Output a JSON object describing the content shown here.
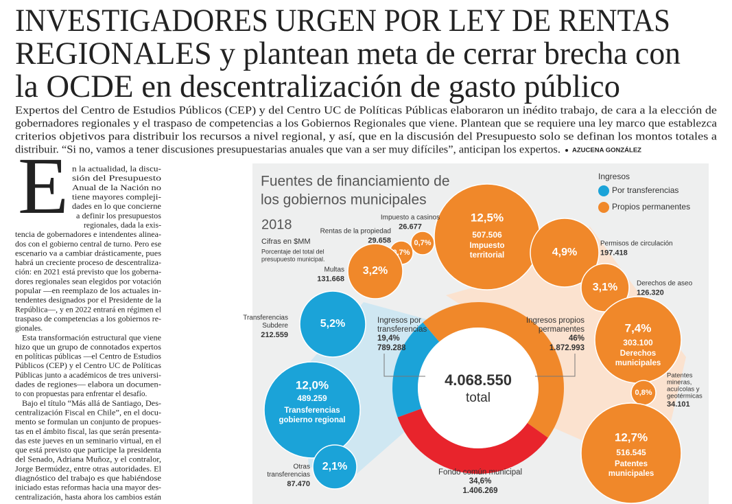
{
  "header": {
    "title": [
      "INVESTIGADORES URGEN POR LEY DE RENTAS",
      "REGIONALES y plantean meta de cerrar brecha con",
      "la OCDE en descentralización de gasto público"
    ],
    "deck": [
      "Expertos del Centro de Estudios Públicos (CEP) y del Centro UC de Políticas Públicas elaboraron un inédito trabajo, de cara a la elección de",
      "gobernadores regionales y el traspaso de competencias a los Gobiernos Regionales que viene. Plantean que se requiere una ley marco que establezca",
      "criterios objetivos para distribuir los recursos a nivel regional, y así, que en la discusión del Presupuesto solo se definan los montos totales a",
      "distribuir. “Si no, vamos a tener discusiones presupuestarias anuales que van a ser muy difíciles”, anticipan los expertos."
    ],
    "byline": "AZUCENA GONZÁLEZ"
  },
  "article": {
    "drop_cap": "E",
    "paragraphs": [
      [
        "n la actualidad, la discu-",
        "sión del Presupuesto",
        "Anual de la Nación no",
        "tiene mayores compleji-",
        "dades en lo que concierne",
        "a definir los presupuestos",
        "regionales, dada la exis-",
        "tencia de gobernadores e intendentes alinea-",
        "dos con el gobierno central de turno. Pero ese",
        "escenario va a cambiar drásticamente, pues",
        "habrá un creciente proceso de descentraliza-",
        "ción: en 2021 está previsto que los goberna-",
        "dores regionales sean elegidos por votación",
        "popular —en reemplazo de los actuales in-",
        "tendentes designados por el Presidente de la",
        "República—, y en 2022 entrará en régimen el",
        "traspaso de competencias a los gobiernos re-",
        "gionales."
      ],
      [
        "Esta transformación estructural que viene",
        "hizo que un grupo de connotados expertos",
        "en políticas públicas —el Centro de Estudios",
        "Públicos (CEP) y el Centro UC de Políticas",
        "Públicas junto a académicos de tres universi-",
        "dades de regiones— elabora un documen-",
        "to con propuestas para enfrentar el desafío."
      ],
      [
        "Bajo el título “Más allá de Santiago, Des-",
        "centralización Fiscal en Chile”, en el docu-",
        "mento se formulan un conjunto de propues-",
        "tas en el ámbito fiscal, las que serán presenta-",
        "das este jueves en un seminario virtual, en el",
        "que está previsto que participe la presidenta",
        "del Senado, Adriana Muñoz, y el contralor,",
        "Jorge Bermúdez, entre otras autoridades. El",
        "diagnóstico del trabajo es que habiéndose",
        "iniciado estas reformas hacia una mayor des-",
        "centralización, hasta ahora los cambios están"
      ]
    ]
  },
  "infographic": {
    "title": [
      "Fuentes de financiamiento de",
      "los gobiernos municipales"
    ],
    "year": "2018",
    "units": "Cifras en $MM",
    "note": [
      "Porcentaje del total del",
      "presupuesto municipal."
    ],
    "legend": {
      "title": "Ingresos",
      "items": [
        "Por transferencias",
        "Propios permanentes"
      ]
    },
    "donut": {
      "total": "4.068.550",
      "total_label": "total",
      "segments": [
        {
          "name": [
            "Ingresos por",
            "transferencias"
          ],
          "share": {
            "value": 19.4,
            "label": "19,4%"
          },
          "amount": "789.288"
        },
        {
          "name": [
            "Ingresos propios",
            "permanentes"
          ],
          "share": {
            "value": 46,
            "label": "46%"
          },
          "amount": "1.872.993"
        },
        {
          "name": [
            "Fondo común municipal"
          ],
          "share": {
            "value": 34.6,
            "label": "34,6%"
          },
          "amount": "1.406.269"
        }
      ]
    },
    "bubbles": [
      {
        "percent": "12,5%",
        "amount": "507.506",
        "name": [
          "Impuesto",
          "territorial"
        ]
      },
      {
        "percent": "0,7%",
        "amount": "26.677",
        "name": [
          "Impuesto a casinos"
        ]
      },
      {
        "percent": "0,7%",
        "amount": "29.658",
        "name": [
          "Rentas de la propiedad"
        ]
      },
      {
        "percent": "3,2%",
        "amount": "131.668",
        "name": [
          "Multas"
        ]
      },
      {
        "percent": "4,9%",
        "amount": "197.418",
        "name": [
          "Permisos de circulación"
        ]
      },
      {
        "percent": "3,1%",
        "amount": "126.320",
        "name": [
          "Derechos de aseo"
        ]
      },
      {
        "percent": "7,4%",
        "amount": "303.100",
        "name": [
          "Derechos",
          "municipales"
        ]
      },
      {
        "percent": "0,8%",
        "amount": "34.101",
        "name": [
          "Patentes",
          "mineras,",
          "acuícolas y",
          "geotérmicas"
        ]
      },
      {
        "percent": "12,7%",
        "amount": "516.545",
        "name": [
          "Patentes",
          "municipales"
        ]
      },
      {
        "percent": "5,2%",
        "amount": "212.559",
        "name": [
          "Transferencias",
          "Subdere"
        ]
      },
      {
        "percent": "12,0%",
        "amount": "489.259",
        "name": [
          "Transferencias",
          "gobierno regional"
        ]
      },
      {
        "percent": "2,1%",
        "amount": "87.470",
        "name": [
          "Otras",
          "transferencias"
        ]
      }
    ]
  }
}
